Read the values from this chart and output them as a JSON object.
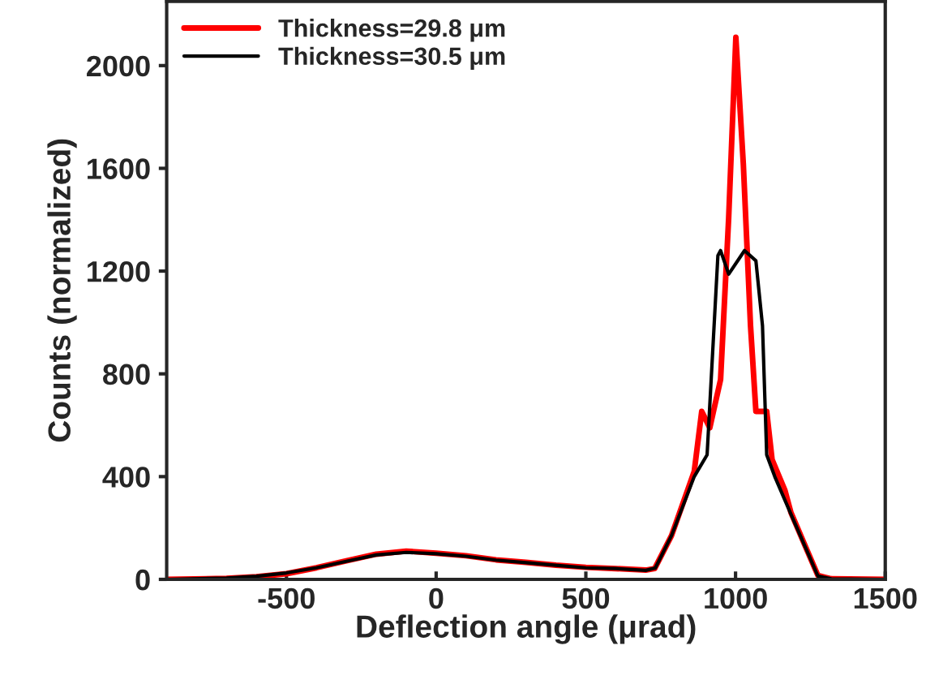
{
  "chart_data": {
    "type": "line",
    "xlabel": "Deflection angle (μrad)",
    "ylabel": "Counts (normalized)",
    "xlim": [
      -900,
      1500
    ],
    "xticks": [
      -500,
      0,
      500,
      1000,
      1500
    ],
    "ylim": [
      0,
      2250
    ],
    "yticks": [
      0,
      400,
      800,
      1200,
      1600,
      2000
    ],
    "legend": "top left",
    "grid": false,
    "series": [
      {
        "name": "Thickness=29.8 μm",
        "color": "#ff0000",
        "x": [
          -900,
          -700,
          -600,
          -500,
          -400,
          -300,
          -200,
          -100,
          0,
          100,
          200,
          300,
          400,
          500,
          600,
          700,
          730,
          786,
          862,
          887,
          914,
          950,
          977,
          1001,
          1026,
          1050,
          1068,
          1104,
          1122,
          1165,
          1185,
          1240,
          1275,
          1320,
          1500
        ],
        "values": [
          0,
          4,
          10,
          22,
          45,
          72,
          98,
          110,
          102,
          92,
          76,
          66,
          55,
          47,
          42,
          36,
          42,
          170,
          420,
          654,
          590,
          778,
          1407,
          2110,
          1616,
          987,
          654,
          654,
          466,
          346,
          260,
          110,
          15,
          2,
          0
        ]
      },
      {
        "name": "Thickness=30.5 μm",
        "color": "#000000",
        "x": [
          -900,
          -700,
          -600,
          -500,
          -400,
          -300,
          -200,
          -100,
          0,
          100,
          200,
          300,
          400,
          500,
          600,
          700,
          732,
          786,
          862,
          905,
          941,
          950,
          977,
          1030,
          1068,
          1090,
          1104,
          1131,
          1185,
          1240,
          1275,
          1320,
          1500
        ],
        "values": [
          0,
          5,
          12,
          25,
          45,
          70,
          95,
          105,
          100,
          90,
          75,
          65,
          55,
          45,
          42,
          35,
          44,
          170,
          400,
          485,
          1260,
          1280,
          1188,
          1280,
          1240,
          987,
          485,
          400,
          254,
          107,
          13,
          2,
          0
        ]
      }
    ]
  }
}
